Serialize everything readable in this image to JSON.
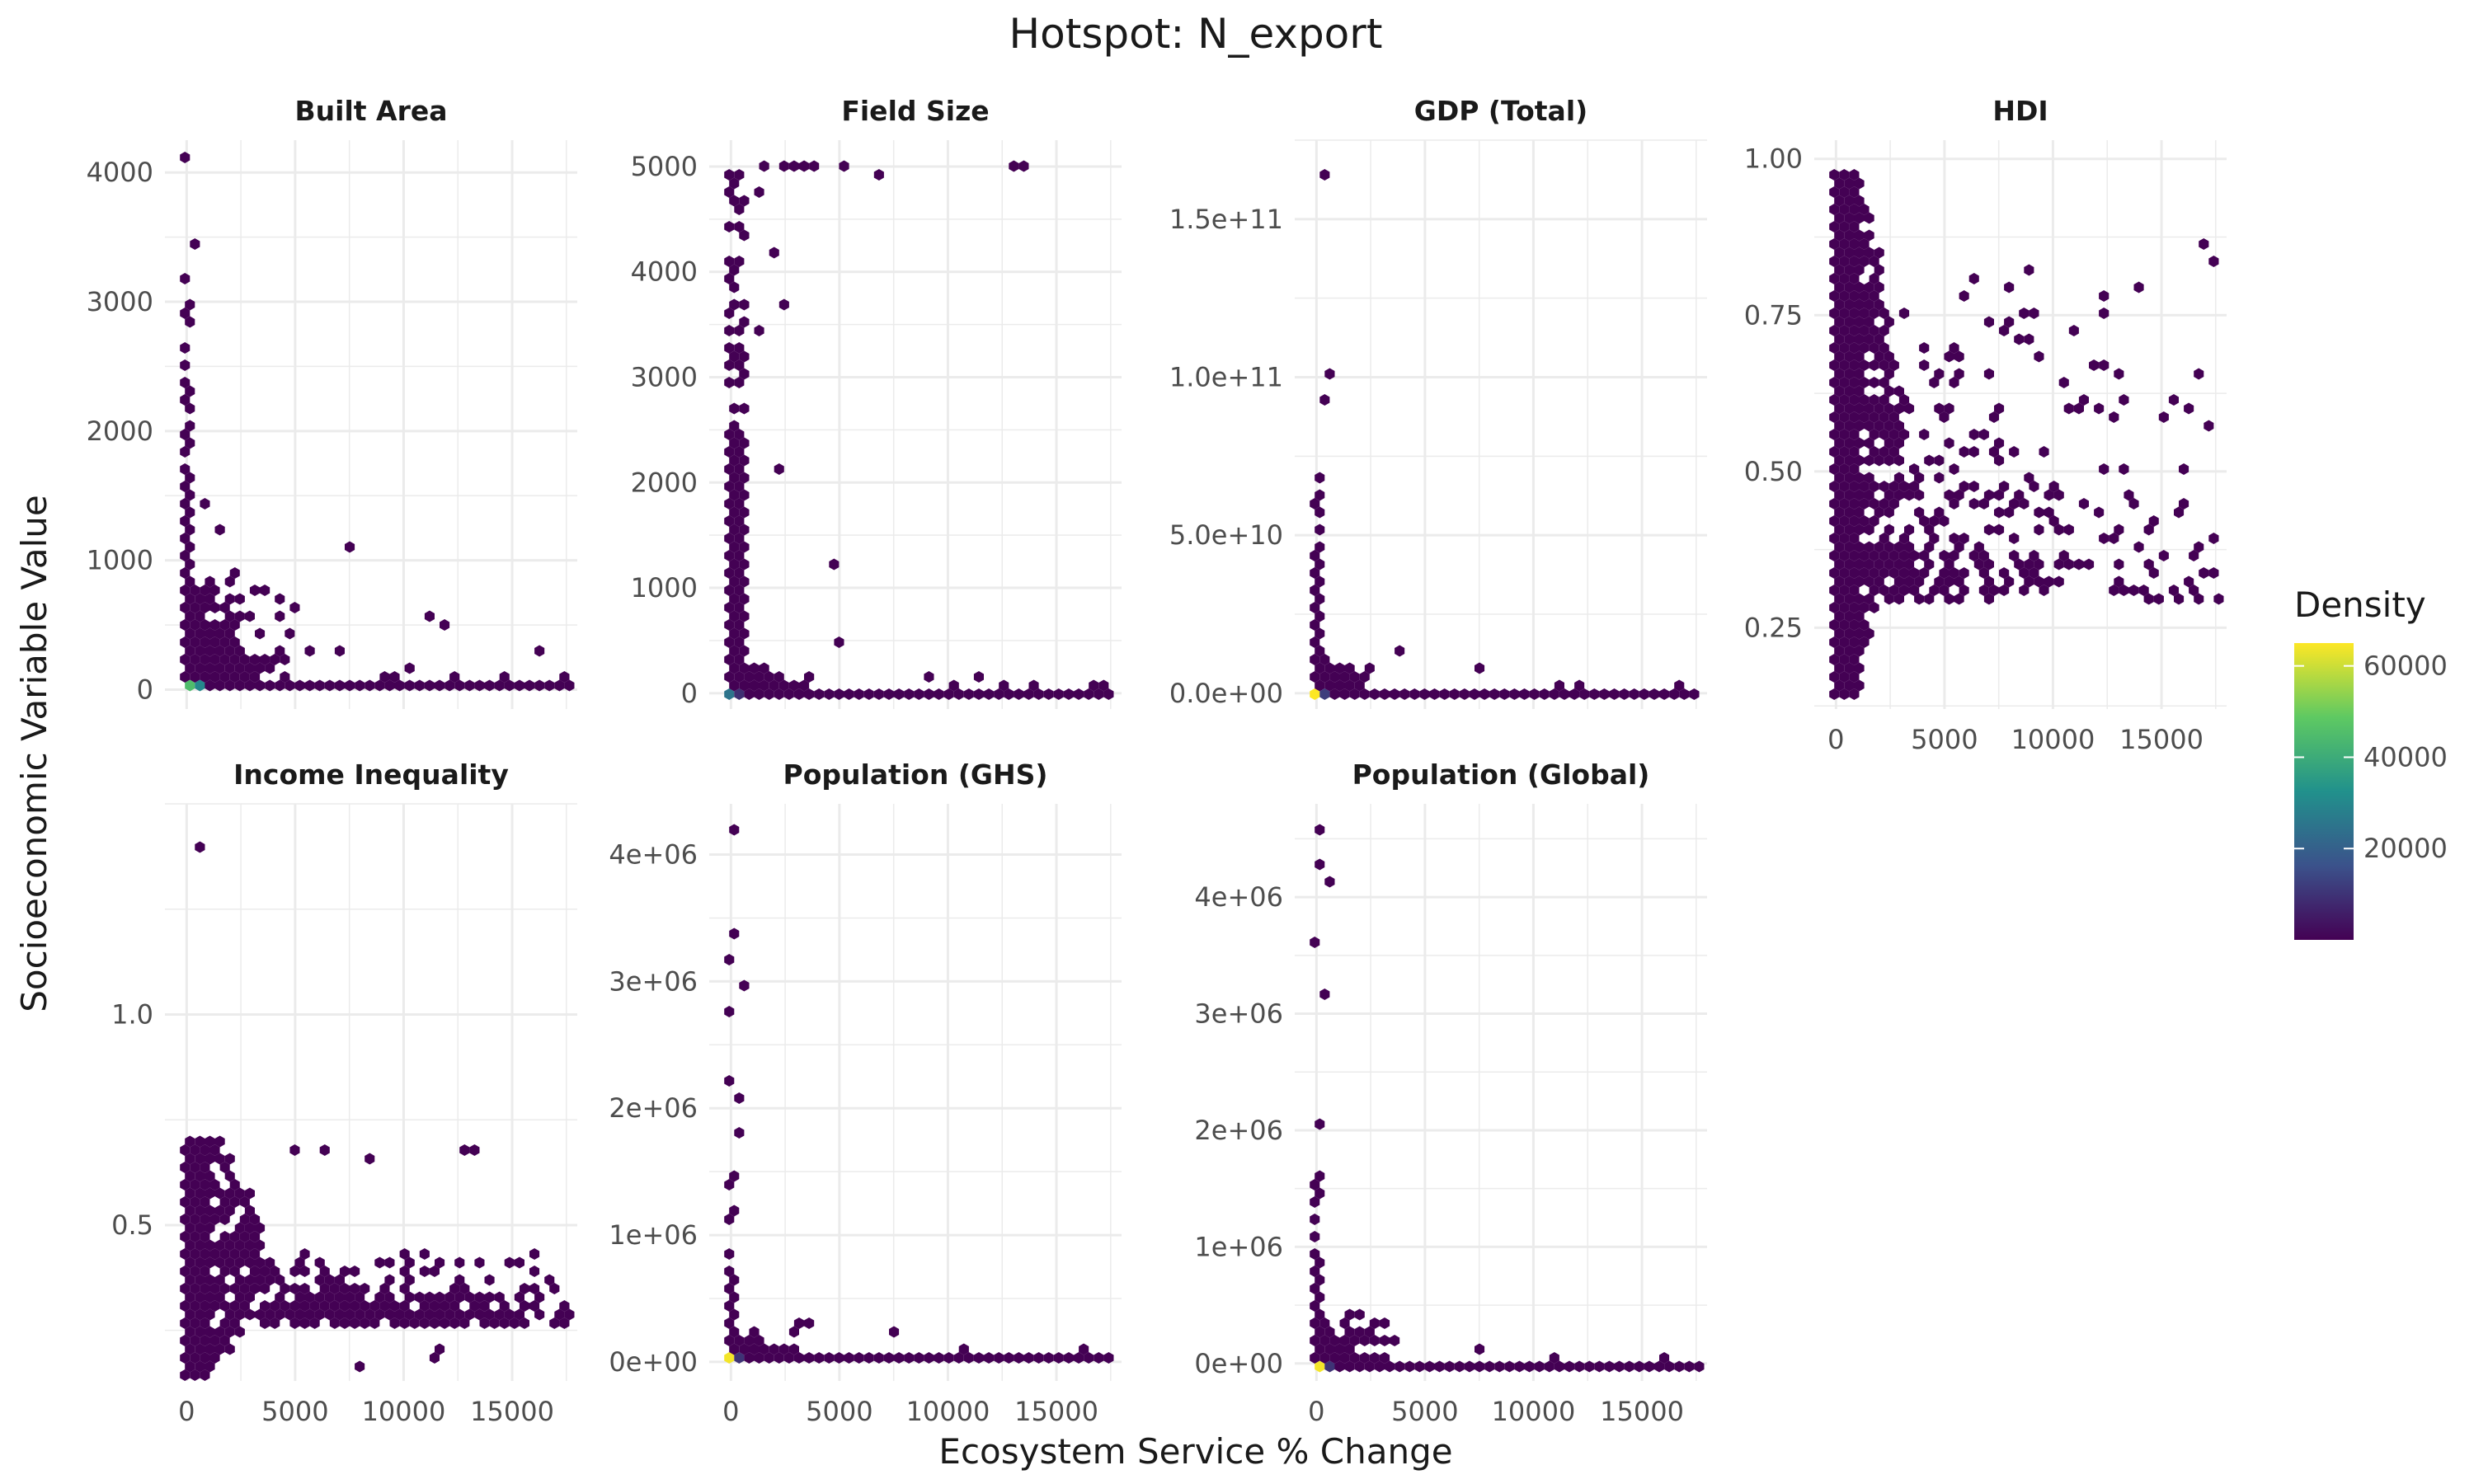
{
  "chart_data": {
    "type": "hexbin",
    "title": "Hotspot: N_export",
    "xlabel": "Ecosystem Service % Change",
    "ylabel": "Socioeconomic Variable Value",
    "grid": true,
    "legend": {
      "title": "Density",
      "position": "right",
      "ticks": [
        20000,
        40000,
        60000
      ],
      "tick_labels": [
        "20000",
        "40000",
        "60000"
      ],
      "range": [
        1,
        65000
      ],
      "colors": [
        "#440154",
        "#3b528b",
        "#21918c",
        "#5ec962",
        "#fde725"
      ]
    },
    "panels": [
      {
        "name": "Built Area",
        "xlim": [
          -1000,
          18000
        ],
        "ylim": [
          -150,
          4250
        ],
        "xticks": [
          0,
          5000,
          10000,
          15000
        ],
        "xtick_labels": [
          "0",
          "5000",
          "10000",
          "15000"
        ],
        "yticks": [
          0,
          1000,
          2000,
          3000,
          4000
        ],
        "ytick_labels": [
          "0",
          "1000",
          "2000",
          "3000",
          "4000"
        ],
        "show_xticks": false,
        "vertical_band": {
          "x": [
            0,
            300
          ],
          "y": [
            0,
            3300
          ],
          "density": 2
        },
        "baseline": {
          "x": [
            0,
            17500
          ],
          "y": 0
        },
        "cluster": {
          "x": [
            0,
            5000
          ],
          "y": [
            0,
            1000
          ],
          "decay": 1400,
          "count": 260
        },
        "points": [
          [
            0,
            4100,
            2
          ],
          [
            200,
            3450,
            2
          ],
          [
            100,
            3000,
            2
          ],
          [
            800,
            1450,
            2
          ],
          [
            1400,
            1250,
            2
          ],
          [
            2300,
            900,
            2
          ],
          [
            3100,
            800,
            2
          ],
          [
            5000,
            650,
            2
          ],
          [
            7500,
            1120,
            2
          ],
          [
            11000,
            560,
            2
          ],
          [
            11800,
            500,
            2
          ],
          [
            16200,
            300,
            2
          ],
          [
            4200,
            250,
            2
          ],
          [
            5600,
            280,
            2
          ],
          [
            6800,
            300,
            2
          ],
          [
            9200,
            120,
            2
          ],
          [
            9600,
            100,
            2
          ],
          [
            10200,
            140,
            2
          ],
          [
            12200,
            90,
            2
          ],
          [
            14500,
            120,
            2
          ],
          [
            17200,
            100,
            2
          ],
          [
            0,
            0,
            45000
          ],
          [
            200,
            0,
            30000
          ],
          [
            500,
            0,
            8000
          ]
        ]
      },
      {
        "name": "Field Size",
        "xlim": [
          -1000,
          18000
        ],
        "ylim": [
          -150,
          5250
        ],
        "xticks": [
          0,
          5000,
          10000,
          15000
        ],
        "xtick_labels": [
          "0",
          "5000",
          "10000",
          "15000"
        ],
        "yticks": [
          0,
          1000,
          2000,
          3000,
          4000,
          5000
        ],
        "ytick_labels": [
          "0",
          "1000",
          "2000",
          "3000",
          "4000",
          "5000"
        ],
        "show_xticks": false,
        "vertical_band": {
          "x": [
            0,
            800
          ],
          "y": [
            0,
            5000
          ],
          "density": 2
        },
        "baseline": {
          "x": [
            0,
            17500
          ],
          "y": 0
        },
        "cluster": {
          "x": [
            0,
            3500
          ],
          "y": [
            0,
            300
          ],
          "decay": 1000,
          "count": 120
        },
        "points": [
          [
            1500,
            5000,
            2
          ],
          [
            2000,
            5000,
            2
          ],
          [
            2600,
            5000,
            2
          ],
          [
            3300,
            5000,
            2
          ],
          [
            3800,
            5000,
            2
          ],
          [
            5200,
            5000,
            2
          ],
          [
            6800,
            4950,
            2
          ],
          [
            12600,
            5000,
            2
          ],
          [
            13200,
            5000,
            2
          ],
          [
            1400,
            4750,
            2
          ],
          [
            1800,
            4150,
            2
          ],
          [
            2300,
            3700,
            2
          ],
          [
            2200,
            2150,
            2
          ],
          [
            1200,
            3450,
            2
          ],
          [
            4700,
            1200,
            2
          ],
          [
            5000,
            520,
            2
          ],
          [
            9200,
            180,
            2
          ],
          [
            10000,
            100,
            2
          ],
          [
            11200,
            120,
            2
          ],
          [
            12300,
            60,
            2
          ],
          [
            13800,
            80,
            2
          ],
          [
            16300,
            80,
            2
          ],
          [
            16800,
            40,
            2
          ],
          [
            0,
            0,
            25000
          ],
          [
            250,
            0,
            9000
          ],
          [
            600,
            0,
            4000
          ]
        ]
      },
      {
        "name": "GDP (Total)",
        "xlim": [
          -1000,
          18000
        ],
        "ylim": [
          -5000000000.0,
          175000000000.0
        ],
        "xticks": [
          0,
          5000,
          10000,
          15000
        ],
        "xtick_labels": [
          "0",
          "5000",
          "10000",
          "15000"
        ],
        "yticks": [
          0,
          50000000000.0,
          100000000000.0,
          150000000000.0
        ],
        "ytick_labels": [
          "0.0e+00",
          "5.0e+10",
          "1.0e+11",
          "1.5e+11"
        ],
        "show_xticks": false,
        "vertical_band": {
          "x": [
            0,
            300
          ],
          "y": [
            0,
            75000000000.0
          ],
          "density": 2
        },
        "baseline": {
          "x": [
            0,
            17500
          ],
          "y": 0
        },
        "cluster": {
          "x": [
            0,
            3000
          ],
          "y": [
            0,
            12000000000.0
          ],
          "decay": 900,
          "count": 90
        },
        "points": [
          [
            300,
            165000000000.0,
            2
          ],
          [
            200,
            100000000000.0,
            2
          ],
          [
            400,
            92000000000.0,
            2
          ],
          [
            3700,
            14000000000.0,
            2
          ],
          [
            7500,
            9000000000.0,
            2
          ],
          [
            10800,
            2000000000.0,
            2
          ],
          [
            12000,
            3500000000.0,
            2
          ],
          [
            16300,
            2500000000.0,
            2
          ],
          [
            0,
            0,
            65000
          ],
          [
            250,
            0,
            12000
          ]
        ]
      },
      {
        "name": "HDI",
        "xlim": [
          -1000,
          18000
        ],
        "ylim": [
          0.12,
          1.03
        ],
        "xticks": [
          0,
          5000,
          10000,
          15000
        ],
        "xtick_labels": [
          "0",
          "5000",
          "10000",
          "15000"
        ],
        "yticks": [
          0.25,
          0.5,
          0.75,
          1.0
        ],
        "ytick_labels": [
          "0.25",
          "0.50",
          "0.75",
          "1.00"
        ],
        "show_xticks": true,
        "dense_fill": {
          "x": [
            0,
            2800
          ],
          "y": [
            0.15,
            0.99
          ],
          "decay": 1600
        },
        "cluster": {
          "x": [
            2000,
            17500
          ],
          "y": [
            0.3,
            0.88
          ],
          "decay": 7000,
          "count": 320
        },
        "points": [
          [
            16500,
            0.3,
            2
          ],
          [
            14100,
            0.35,
            2
          ],
          [
            13000,
            0.4,
            2
          ],
          [
            9300,
            0.32,
            2
          ],
          [
            12500,
            0.75,
            2
          ],
          [
            13800,
            0.8,
            2
          ],
          [
            16800,
            0.86,
            2
          ],
          [
            17500,
            0.84,
            2
          ]
        ]
      },
      {
        "name": "Income Inequality",
        "xlim": [
          -1000,
          18000
        ],
        "ylim": [
          0.13,
          1.5
        ],
        "xticks": [
          0,
          5000,
          10000,
          15000
        ],
        "xtick_labels": [
          "0",
          "5000",
          "10000",
          "15000"
        ],
        "yticks": [
          0.5,
          1.0
        ],
        "ytick_labels": [
          "0.5",
          "1.0"
        ],
        "show_xticks": true,
        "dense_fill": {
          "x": [
            0,
            3500
          ],
          "y": [
            0.15,
            0.72
          ],
          "decay": 2200
        },
        "cluster": {
          "x": [
            3500,
            17500
          ],
          "y": [
            0.27,
            0.45
          ],
          "decay": 9000,
          "count": 380
        },
        "band": {
          "x": [
            3000,
            15000
          ],
          "y": 0.28
        },
        "points": [
          [
            300,
            1.4,
            2
          ],
          [
            5000,
            0.68,
            2
          ],
          [
            6500,
            0.68,
            2
          ],
          [
            8200,
            0.66,
            2
          ],
          [
            12800,
            0.68,
            2
          ],
          [
            13100,
            0.68,
            2
          ],
          [
            7600,
            0.16,
            2
          ],
          [
            7900,
            0.16,
            2
          ],
          [
            11200,
            0.2,
            2
          ],
          [
            11500,
            0.18,
            2
          ],
          [
            17500,
            0.3,
            2
          ],
          [
            17100,
            0.26,
            2
          ]
        ]
      },
      {
        "name": "Population (GHS)",
        "xlim": [
          -1000,
          18000
        ],
        "ylim": [
          -150000.0,
          4400000.0
        ],
        "xticks": [
          0,
          5000,
          10000,
          15000
        ],
        "xtick_labels": [
          "0",
          "5000",
          "10000",
          "15000"
        ],
        "yticks": [
          0,
          1000000.0,
          2000000.0,
          3000000.0,
          4000000.0
        ],
        "ytick_labels": [
          "0e+00",
          "1e+06",
          "2e+06",
          "3e+06",
          "4e+06"
        ],
        "show_xticks": true,
        "vertical_band": {
          "x": [
            0,
            300
          ],
          "y": [
            0,
            1500000.0
          ],
          "density": 2
        },
        "baseline": {
          "x": [
            0,
            17500
          ],
          "y": 0
        },
        "cluster": {
          "x": [
            0,
            4000
          ],
          "y": [
            0,
            300000.0
          ],
          "decay": 1100,
          "count": 110
        },
        "points": [
          [
            0,
            4200000.0,
            2
          ],
          [
            0,
            3350000.0,
            2
          ],
          [
            100,
            3200000.0,
            2
          ],
          [
            200,
            2950000.0,
            2
          ],
          [
            0,
            2750000.0,
            2
          ],
          [
            100,
            2200000.0,
            2
          ],
          [
            200,
            2100000.0,
            2
          ],
          [
            200,
            1800000.0,
            2
          ],
          [
            3300,
            300000.0,
            2
          ],
          [
            3600,
            300000.0,
            2
          ],
          [
            7500,
            220000.0,
            2
          ],
          [
            10600,
            80000.0,
            2
          ],
          [
            16200,
            70000.0,
            2
          ],
          [
            0,
            0,
            64000
          ],
          [
            250,
            0,
            10000
          ]
        ]
      },
      {
        "name": "Population (Global)",
        "xlim": [
          -1000,
          18000
        ],
        "ylim": [
          -150000.0,
          4800000.0
        ],
        "xticks": [
          0,
          5000,
          10000,
          15000
        ],
        "xtick_labels": [
          "0",
          "5000",
          "10000",
          "15000"
        ],
        "yticks": [
          0,
          1000000.0,
          2000000.0,
          3000000.0,
          4000000.0
        ],
        "ytick_labels": [
          "0e+00",
          "1e+06",
          "2e+06",
          "3e+06",
          "4e+06"
        ],
        "show_xticks": true,
        "vertical_band": {
          "x": [
            0,
            300
          ],
          "y": [
            0,
            1800000.0
          ],
          "density": 2
        },
        "baseline": {
          "x": [
            0,
            17500
          ],
          "y": 0
        },
        "cluster": {
          "x": [
            0,
            4000
          ],
          "y": [
            0,
            400000.0
          ],
          "decay": 1100,
          "count": 110
        },
        "points": [
          [
            0,
            4550000.0,
            2
          ],
          [
            0,
            4250000.0,
            2
          ],
          [
            200,
            4150000.0,
            2
          ],
          [
            0,
            3600000.0,
            2
          ],
          [
            200,
            3200000.0,
            2
          ],
          [
            0,
            2050000.0,
            2
          ],
          [
            1500,
            400000.0,
            2
          ],
          [
            1800,
            400000.0,
            2
          ],
          [
            3100,
            320000.0,
            2
          ],
          [
            7400,
            100000.0,
            2
          ],
          [
            10800,
            80000.0,
            2
          ],
          [
            16200,
            50000.0,
            2
          ],
          [
            0,
            0,
            64000
          ],
          [
            250,
            0,
            10000
          ]
        ]
      }
    ]
  }
}
